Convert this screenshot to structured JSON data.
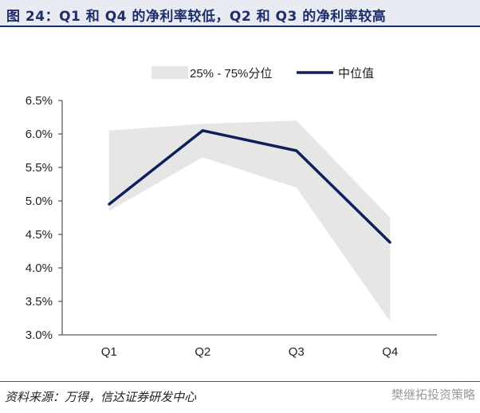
{
  "header": {
    "title": "图 24：Q1 和 Q4 的净利率较低，Q2 和 Q3 的净利率较高"
  },
  "footer": {
    "source": "资料来源：万得，信达证券研发中心",
    "watermark": "樊继拓投资策略"
  },
  "colors": {
    "band": "#e6e6e6",
    "line": "#0e1f5b",
    "title_bg": "#e8ebf2",
    "title_text": "#1f2e6b"
  },
  "chart_data": {
    "type": "line",
    "title": "",
    "xlabel": "",
    "ylabel": "",
    "categories": [
      "Q1",
      "Q2",
      "Q3",
      "Q4"
    ],
    "ylim": [
      3.0,
      6.5
    ],
    "yticks": [
      3.0,
      3.5,
      4.0,
      4.5,
      5.0,
      5.5,
      6.0,
      6.5
    ],
    "ytick_labels": [
      "3.0%",
      "3.5%",
      "4.0%",
      "4.5%",
      "5.0%",
      "5.5%",
      "6.0%",
      "6.5%"
    ],
    "grid": false,
    "legend_position": "top",
    "series": [
      {
        "name": "中位值",
        "kind": "line",
        "values": [
          4.95,
          6.05,
          5.75,
          4.38
        ]
      }
    ],
    "bands": [
      {
        "name": "25% - 75%分位",
        "lower": [
          4.85,
          5.65,
          5.2,
          3.2
        ],
        "upper": [
          6.05,
          6.15,
          6.2,
          4.75
        ]
      }
    ]
  }
}
